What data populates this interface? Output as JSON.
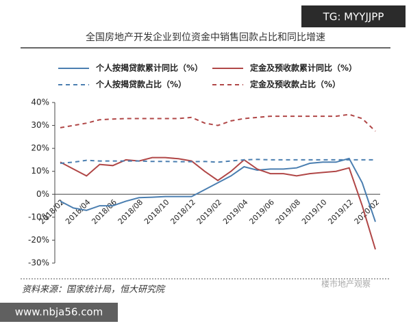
{
  "chart_data": {
    "type": "line",
    "title": "全国房地产开发企业到位资金中销售回款占比和同比增速",
    "source": "资料来源：国家统计局，恒大研究院",
    "watermarks": [
      "TG: MYYJJPP",
      "www.nbja56.com",
      "楼市地产观察"
    ],
    "categories": [
      "2018/02",
      null,
      "2018/04",
      null,
      "2018/06",
      null,
      "2018/08",
      null,
      "2018/10",
      null,
      "2018/12",
      null,
      "2019/02",
      null,
      "2019/04",
      null,
      "2019/06",
      null,
      "2019/08",
      null,
      "2019/10",
      null,
      "2019/12",
      null,
      "2020/02"
    ],
    "series": [
      {
        "name": "个人按揭贷款累计同比（%）",
        "color": "#4a7eb0",
        "dash": false,
        "values": [
          -3,
          -6,
          -7,
          -5,
          -5,
          -3,
          -1.5,
          -1.3,
          -1,
          -1,
          -1,
          2,
          5,
          8,
          12,
          10.5,
          11,
          11,
          11.5,
          13.5,
          14,
          14,
          15.6,
          5,
          -12
        ]
      },
      {
        "name": "定金及预收款累计同比（%）",
        "color": "#b04646",
        "dash": false,
        "values": [
          14,
          11,
          8,
          13,
          12.5,
          15,
          14.5,
          16,
          16,
          15.5,
          14.5,
          10,
          6,
          10,
          15,
          11,
          9,
          9,
          8,
          9,
          9.5,
          10,
          11.5,
          -5,
          -24
        ]
      },
      {
        "name": "个人按揭贷款占比（%）",
        "color": "#4a7eb0",
        "dash": true,
        "values": [
          13.5,
          14,
          14.8,
          14.5,
          14.5,
          14.5,
          14.5,
          14.3,
          14.3,
          14.2,
          14.2,
          14.3,
          14,
          14.5,
          15,
          15.2,
          15,
          15,
          15,
          15,
          15,
          15,
          15,
          15,
          15
        ]
      },
      {
        "name": "定金及预收款占比（%）",
        "color": "#b04646",
        "dash": true,
        "values": [
          29,
          30,
          31,
          32.5,
          32.8,
          33,
          33,
          33,
          33,
          33,
          33.5,
          31,
          30,
          32,
          33,
          33.5,
          34,
          34,
          34,
          34,
          34,
          34,
          34.8,
          33,
          27.5
        ]
      }
    ],
    "ylim": [
      -30,
      40
    ],
    "yticks": [
      {
        "value": -30,
        "label": "-30%"
      },
      {
        "value": -20,
        "label": "-20%"
      },
      {
        "value": -10,
        "label": "-10%"
      },
      {
        "value": 0,
        "label": "0%"
      },
      {
        "value": 10,
        "label": "10%"
      },
      {
        "value": 20,
        "label": "20%"
      },
      {
        "value": 30,
        "label": "30%"
      },
      {
        "value": 40,
        "label": "40%"
      }
    ],
    "grid": false
  }
}
